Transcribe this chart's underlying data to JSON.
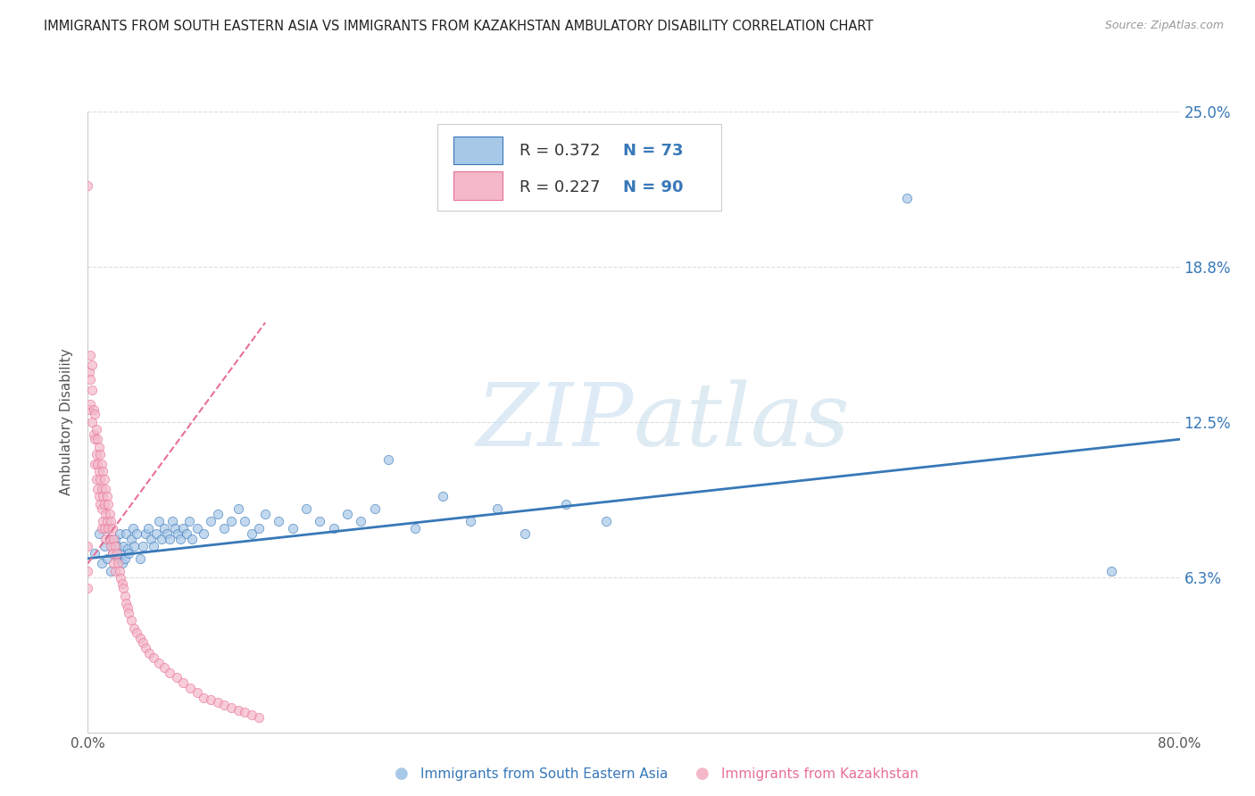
{
  "title": "IMMIGRANTS FROM SOUTH EASTERN ASIA VS IMMIGRANTS FROM KAZAKHSTAN AMBULATORY DISABILITY CORRELATION CHART",
  "source": "Source: ZipAtlas.com",
  "xlabel_blue": "Immigrants from South Eastern Asia",
  "xlabel_pink": "Immigrants from Kazakhstan",
  "ylabel": "Ambulatory Disability",
  "watermark_zip": "ZIP",
  "watermark_atlas": "atlas",
  "r_blue": 0.372,
  "n_blue": 73,
  "r_pink": 0.227,
  "n_pink": 90,
  "blue_color": "#a8c8e8",
  "pink_color": "#f4b8c8",
  "trendline_blue_color": "#3878b8",
  "trendline_pink_color": "#e87098",
  "legend_text_color": "#3878b8",
  "x_min": 0.0,
  "x_max": 0.8,
  "y_min": 0.0,
  "y_max": 0.25,
  "y_ticks": [
    0.0,
    0.0625,
    0.125,
    0.1875,
    0.25
  ],
  "y_tick_labels": [
    "",
    "6.3%",
    "12.5%",
    "18.8%",
    "25.0%"
  ],
  "x_ticks": [
    0.0,
    0.16,
    0.32,
    0.48,
    0.64,
    0.8
  ],
  "x_tick_labels": [
    "0.0%",
    "",
    "",
    "",
    "",
    "80.0%"
  ],
  "blue_scatter_x": [
    0.005,
    0.008,
    0.01,
    0.012,
    0.014,
    0.015,
    0.016,
    0.017,
    0.018,
    0.02,
    0.021,
    0.022,
    0.023,
    0.024,
    0.025,
    0.026,
    0.027,
    0.028,
    0.029,
    0.03,
    0.032,
    0.033,
    0.034,
    0.036,
    0.038,
    0.04,
    0.042,
    0.044,
    0.046,
    0.048,
    0.05,
    0.052,
    0.054,
    0.056,
    0.058,
    0.06,
    0.062,
    0.064,
    0.066,
    0.068,
    0.07,
    0.072,
    0.074,
    0.076,
    0.08,
    0.085,
    0.09,
    0.095,
    0.1,
    0.105,
    0.11,
    0.115,
    0.12,
    0.125,
    0.13,
    0.14,
    0.15,
    0.16,
    0.17,
    0.18,
    0.19,
    0.2,
    0.21,
    0.22,
    0.24,
    0.26,
    0.28,
    0.3,
    0.32,
    0.35,
    0.38,
    0.6,
    0.75
  ],
  "blue_scatter_y": [
    0.072,
    0.08,
    0.068,
    0.075,
    0.07,
    0.082,
    0.078,
    0.065,
    0.072,
    0.078,
    0.075,
    0.07,
    0.08,
    0.072,
    0.068,
    0.075,
    0.07,
    0.08,
    0.074,
    0.072,
    0.078,
    0.082,
    0.075,
    0.08,
    0.07,
    0.075,
    0.08,
    0.082,
    0.078,
    0.075,
    0.08,
    0.085,
    0.078,
    0.082,
    0.08,
    0.078,
    0.085,
    0.082,
    0.08,
    0.078,
    0.082,
    0.08,
    0.085,
    0.078,
    0.082,
    0.08,
    0.085,
    0.088,
    0.082,
    0.085,
    0.09,
    0.085,
    0.08,
    0.082,
    0.088,
    0.085,
    0.082,
    0.09,
    0.085,
    0.082,
    0.088,
    0.085,
    0.09,
    0.11,
    0.082,
    0.095,
    0.085,
    0.09,
    0.08,
    0.092,
    0.085,
    0.215,
    0.065
  ],
  "pink_scatter_x": [
    0.0,
    0.0,
    0.001,
    0.001,
    0.002,
    0.002,
    0.002,
    0.003,
    0.003,
    0.003,
    0.004,
    0.004,
    0.005,
    0.005,
    0.005,
    0.006,
    0.006,
    0.006,
    0.007,
    0.007,
    0.007,
    0.008,
    0.008,
    0.008,
    0.009,
    0.009,
    0.009,
    0.01,
    0.01,
    0.01,
    0.01,
    0.011,
    0.011,
    0.011,
    0.012,
    0.012,
    0.012,
    0.013,
    0.013,
    0.013,
    0.014,
    0.014,
    0.015,
    0.015,
    0.016,
    0.016,
    0.017,
    0.017,
    0.018,
    0.018,
    0.019,
    0.019,
    0.02,
    0.02,
    0.021,
    0.022,
    0.023,
    0.024,
    0.025,
    0.026,
    0.027,
    0.028,
    0.029,
    0.03,
    0.032,
    0.034,
    0.036,
    0.038,
    0.04,
    0.042,
    0.045,
    0.048,
    0.052,
    0.056,
    0.06,
    0.065,
    0.07,
    0.075,
    0.08,
    0.085,
    0.09,
    0.095,
    0.1,
    0.105,
    0.11,
    0.115,
    0.12,
    0.125,
    0.0,
    0.0
  ],
  "pink_scatter_y": [
    0.075,
    0.065,
    0.145,
    0.13,
    0.152,
    0.142,
    0.132,
    0.148,
    0.138,
    0.125,
    0.13,
    0.12,
    0.128,
    0.118,
    0.108,
    0.122,
    0.112,
    0.102,
    0.118,
    0.108,
    0.098,
    0.115,
    0.105,
    0.095,
    0.112,
    0.102,
    0.092,
    0.108,
    0.098,
    0.09,
    0.082,
    0.105,
    0.095,
    0.085,
    0.102,
    0.092,
    0.082,
    0.098,
    0.088,
    0.078,
    0.095,
    0.085,
    0.092,
    0.082,
    0.088,
    0.078,
    0.085,
    0.075,
    0.082,
    0.072,
    0.078,
    0.068,
    0.075,
    0.065,
    0.072,
    0.068,
    0.065,
    0.062,
    0.06,
    0.058,
    0.055,
    0.052,
    0.05,
    0.048,
    0.045,
    0.042,
    0.04,
    0.038,
    0.036,
    0.034,
    0.032,
    0.03,
    0.028,
    0.026,
    0.024,
    0.022,
    0.02,
    0.018,
    0.016,
    0.014,
    0.013,
    0.012,
    0.011,
    0.01,
    0.009,
    0.008,
    0.007,
    0.006,
    0.22,
    0.058
  ],
  "blue_trend_x": [
    0.0,
    0.8
  ],
  "blue_trend_y": [
    0.07,
    0.118
  ],
  "pink_trend_x": [
    0.0,
    0.13
  ],
  "pink_trend_y": [
    0.068,
    0.165
  ]
}
